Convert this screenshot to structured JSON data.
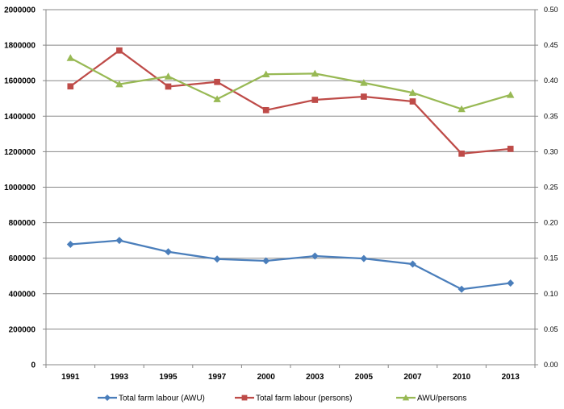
{
  "chart_data": {
    "type": "line",
    "categories": [
      "1991",
      "1993",
      "1995",
      "1997",
      "2000",
      "2003",
      "2005",
      "2007",
      "2010",
      "2013"
    ],
    "series": [
      {
        "name": "Total farm labour (AWU)",
        "axis": "left",
        "color": "#4A7EBB",
        "marker": "diamond",
        "values": [
          678000,
          700000,
          636000,
          595000,
          585000,
          612000,
          598000,
          567000,
          425000,
          460000
        ]
      },
      {
        "name": "Total farm labour (persons)",
        "axis": "left",
        "color": "#BE4B48",
        "marker": "square",
        "values": [
          1568000,
          1770000,
          1567000,
          1593000,
          1434000,
          1492000,
          1510000,
          1483000,
          1189000,
          1216000
        ]
      },
      {
        "name": "AWU/persons",
        "axis": "right",
        "color": "#98B954",
        "marker": "triangle",
        "values": [
          0.432,
          0.395,
          0.406,
          0.374,
          0.409,
          0.41,
          0.397,
          0.383,
          0.36,
          0.38
        ]
      }
    ],
    "y_left": {
      "min": 0,
      "max": 2000000,
      "ticks": [
        "0",
        "200000",
        "400000",
        "600000",
        "800000",
        "1000000",
        "1200000",
        "1400000",
        "1600000",
        "1800000",
        "2000000"
      ]
    },
    "y_right": {
      "min": 0,
      "max": 0.5,
      "ticks": [
        "0.00",
        "0.05",
        "0.10",
        "0.15",
        "0.20",
        "0.25",
        "0.30",
        "0.35",
        "0.40",
        "0.45",
        "0.50"
      ]
    },
    "grid": true,
    "legend_position": "bottom",
    "gridline_color": "#878787"
  }
}
